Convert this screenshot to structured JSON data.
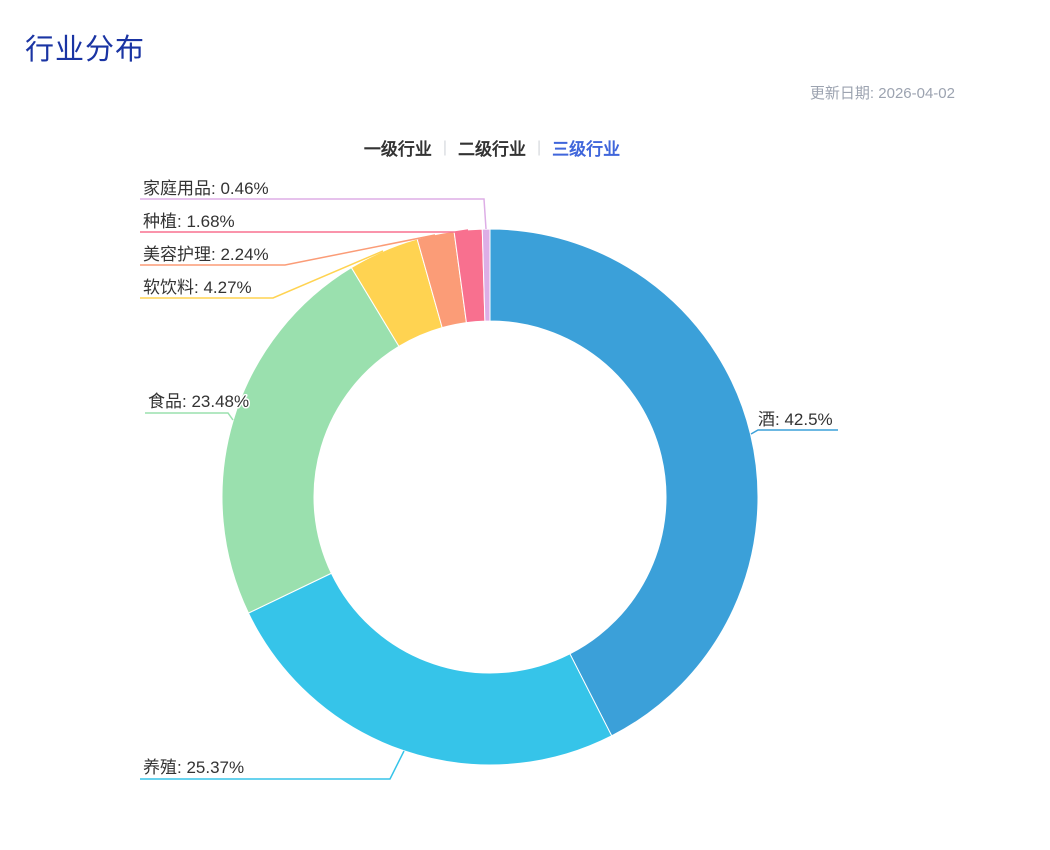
{
  "page": {
    "title": "行业分布",
    "updated": "更新日期: 2026-04-02"
  },
  "tabs": {
    "separator": "|",
    "items": [
      {
        "label": "一级行业",
        "active": false
      },
      {
        "label": "二级行业",
        "active": false
      },
      {
        "label": "三级行业",
        "active": true
      }
    ]
  },
  "colors": {
    "title": "#1A34A3",
    "active_tab": "#4066DB",
    "label_text": "#333333",
    "date_text": "#9CA3B0"
  },
  "chart_data": {
    "type": "pie",
    "subtype": "donut",
    "title": "行业分布",
    "unit": "%",
    "start_angle_deg": 90,
    "clockwise": true,
    "label_format": "{name}: {value}%",
    "legend_position": "none",
    "series": [
      {
        "name": "酒",
        "value": 42.5,
        "color": "#3BA0D9"
      },
      {
        "name": "养殖",
        "value": 25.37,
        "color": "#36C4E9"
      },
      {
        "name": "食品",
        "value": 23.48,
        "color": "#9AE0AE"
      },
      {
        "name": "软饮料",
        "value": 4.27,
        "color": "#FFD351"
      },
      {
        "name": "美容护理",
        "value": 2.24,
        "color": "#FB9C77"
      },
      {
        "name": "种植",
        "value": 1.68,
        "color": "#F8708F"
      },
      {
        "name": "家庭用品",
        "value": 0.46,
        "color": "#DDAEE6"
      }
    ]
  }
}
